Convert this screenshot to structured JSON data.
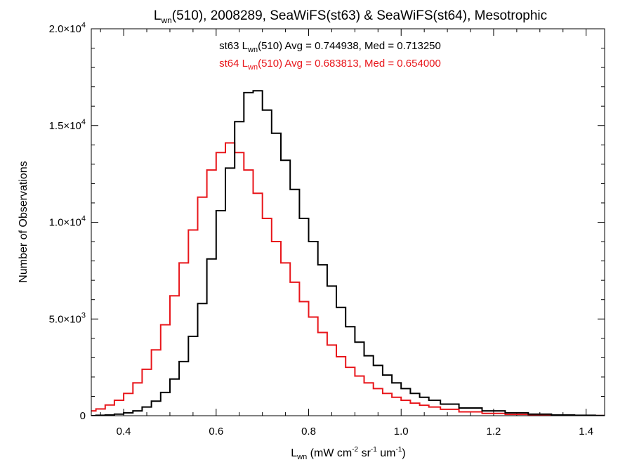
{
  "chart_data": {
    "type": "line",
    "title": {
      "L_sym": "L",
      "L_sub": "wn",
      "rest": "(510), 2008289, SeaWiFS(st63) & SeaWiFS(st64), Mesotrophic"
    },
    "xlabel": {
      "L_sym": "L",
      "L_sub": "wn",
      "p1": " (mW cm",
      "s1": "-2",
      "p2": " sr",
      "s2": "-1",
      "p3": " um",
      "s3": "-1",
      "p4": ")"
    },
    "ylabel": "Number of Observations",
    "xlim": [
      0.33,
      1.44
    ],
    "ylim": [
      0,
      20000
    ],
    "x_ticks": [
      "0.4",
      "0.6",
      "0.8",
      "1.0",
      "1.2",
      "1.4"
    ],
    "x_tick_values": [
      0.4,
      0.6,
      0.8,
      1.0,
      1.2,
      1.4
    ],
    "y_ticks": [
      {
        "value": 0,
        "mant": "0",
        "exp": ""
      },
      {
        "value": 5000,
        "mant": "5.0×10",
        "exp": "3"
      },
      {
        "value": 10000,
        "mant": "1.0×10",
        "exp": "4"
      },
      {
        "value": 15000,
        "mant": "1.5×10",
        "exp": "4"
      },
      {
        "value": 20000,
        "mant": "2.0×10",
        "exp": "4"
      }
    ],
    "annotations": [
      {
        "pre": "st63 L",
        "sub": "wn",
        "post": "(510) Avg = 0.744938, Med = 0.713250",
        "color": "#000000"
      },
      {
        "pre": "st64 L",
        "sub": "wn",
        "post": "(510) Avg = 0.683813, Med = 0.654000",
        "color": "#e8161b"
      }
    ],
    "series": [
      {
        "color": "#000000",
        "x": [
          0.33,
          0.35,
          0.37,
          0.39,
          0.41,
          0.43,
          0.45,
          0.47,
          0.49,
          0.51,
          0.53,
          0.55,
          0.57,
          0.59,
          0.61,
          0.63,
          0.65,
          0.67,
          0.69,
          0.71,
          0.73,
          0.75,
          0.77,
          0.79,
          0.81,
          0.83,
          0.85,
          0.87,
          0.89,
          0.91,
          0.93,
          0.95,
          0.97,
          0.99,
          1.01,
          1.03,
          1.05,
          1.07,
          1.1,
          1.15,
          1.2,
          1.25,
          1.3,
          1.35,
          1.4,
          1.44
        ],
        "y": [
          0,
          20,
          40,
          80,
          150,
          250,
          450,
          750,
          1200,
          1900,
          2800,
          4100,
          5800,
          8100,
          10600,
          12800,
          15200,
          16700,
          16800,
          15800,
          14600,
          13200,
          11700,
          10200,
          9000,
          7800,
          6700,
          5600,
          4600,
          3800,
          3100,
          2600,
          2100,
          1700,
          1400,
          1150,
          950,
          800,
          600,
          400,
          250,
          150,
          80,
          40,
          20,
          10
        ]
      },
      {
        "color": "#e8161b",
        "x": [
          0.33,
          0.35,
          0.37,
          0.39,
          0.41,
          0.43,
          0.45,
          0.47,
          0.49,
          0.51,
          0.53,
          0.55,
          0.57,
          0.59,
          0.61,
          0.63,
          0.65,
          0.67,
          0.69,
          0.71,
          0.73,
          0.75,
          0.77,
          0.79,
          0.81,
          0.83,
          0.85,
          0.87,
          0.89,
          0.91,
          0.93,
          0.95,
          0.97,
          0.99,
          1.01,
          1.03,
          1.05,
          1.07,
          1.1,
          1.15,
          1.2,
          1.25,
          1.3,
          1.35,
          1.4,
          1.44
        ],
        "y": [
          250,
          350,
          550,
          800,
          1150,
          1700,
          2400,
          3400,
          4700,
          6200,
          7900,
          9600,
          11300,
          12700,
          13600,
          14100,
          13600,
          12700,
          11500,
          10200,
          9000,
          7900,
          6900,
          5900,
          5100,
          4300,
          3650,
          3050,
          2500,
          2050,
          1700,
          1400,
          1150,
          950,
          800,
          650,
          540,
          450,
          330,
          200,
          120,
          70,
          40,
          20,
          10,
          5
        ]
      }
    ]
  }
}
